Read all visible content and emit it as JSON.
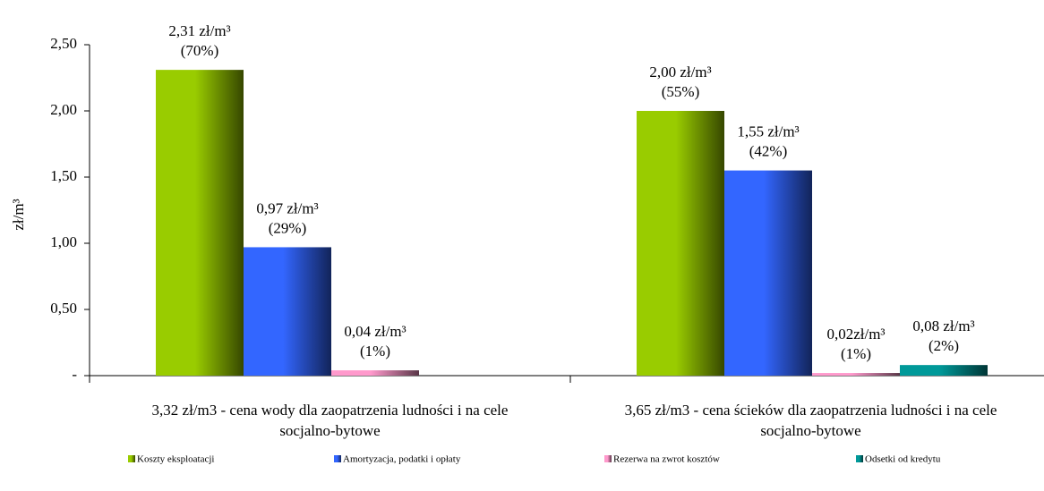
{
  "chart_data": {
    "type": "bar",
    "y_label": "zł/m³",
    "categories": [
      [
        "3,32 zł/m3 - cena wody dla zaopatrzenia ludności i na cele",
        "socjalno-bytowe"
      ],
      [
        "3,65 zł/m3 - cena ścieków dla zaopatrzenia ludności i na cele",
        "socjalno-bytowe"
      ]
    ],
    "series": [
      {
        "name": "Koszty eksploatacji",
        "color": "#99cc00",
        "values": [
          2.31,
          2.0
        ],
        "value_labels": [
          "2,31 zł/m³",
          "2,00 zł/m³"
        ],
        "share_labels": [
          "(70%)",
          "(55%)"
        ]
      },
      {
        "name": "Amortyzacja, podatki i opłaty",
        "color": "#3366ff",
        "values": [
          0.97,
          1.55
        ],
        "value_labels": [
          "0,97 zł/m³",
          "1,55 zł/m³"
        ],
        "share_labels": [
          "(29%)",
          "(42%)"
        ]
      },
      {
        "name": "Rezerwa na zwrot kosztów",
        "color": "#ff99cc",
        "values": [
          0.04,
          0.02
        ],
        "value_labels": [
          "0,04 zł/m³",
          "0,02zł/m³"
        ],
        "share_labels": [
          "(1%)",
          "(1%)"
        ]
      },
      {
        "name": "Odsetki od kredytu",
        "color": "#009999",
        "values": [
          null,
          0.08
        ],
        "value_labels": [
          null,
          "0,08 zł/m³"
        ],
        "share_labels": [
          null,
          "(2%)"
        ]
      }
    ],
    "ylim": [
      0,
      2.5
    ],
    "yticks": [
      {
        "value": 0,
        "label": "-"
      },
      {
        "value": 0.5,
        "label": "0,50"
      },
      {
        "value": 1,
        "label": "1,00"
      },
      {
        "value": 1.5,
        "label": "1,50"
      },
      {
        "value": 2,
        "label": "2,00"
      },
      {
        "value": 2.5,
        "label": "2,50"
      }
    ],
    "grid": false,
    "legend": "bottom"
  }
}
